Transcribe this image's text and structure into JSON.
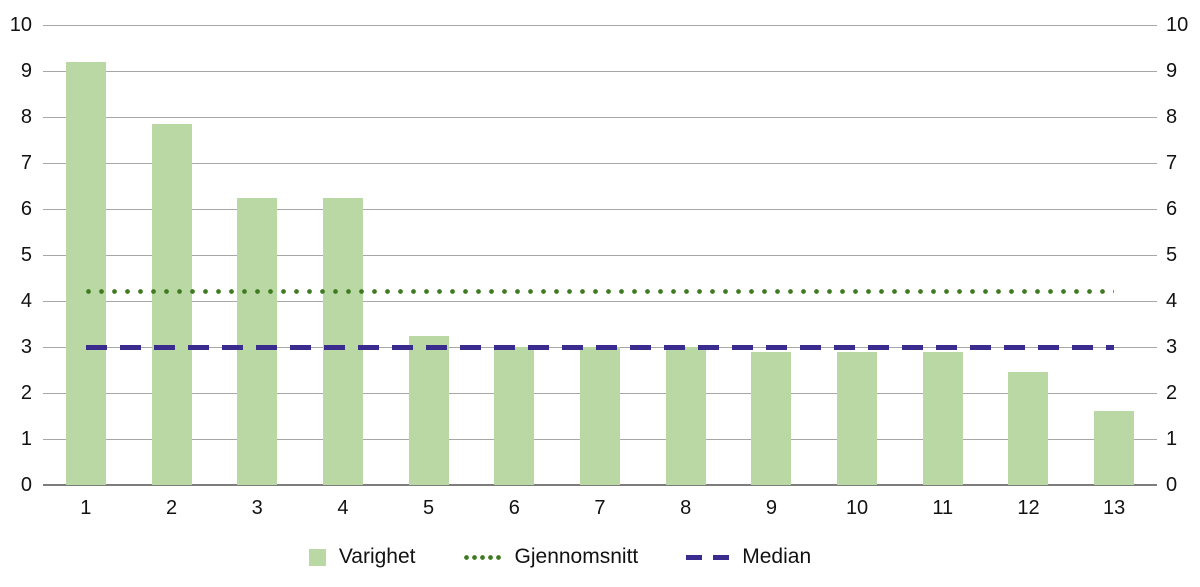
{
  "chart_data": {
    "type": "bar",
    "title": "",
    "xlabel": "",
    "ylabel": "",
    "categories": [
      "1",
      "2",
      "3",
      "4",
      "5",
      "6",
      "7",
      "8",
      "9",
      "10",
      "11",
      "12",
      "13"
    ],
    "series": [
      {
        "name": "Varighet",
        "kind": "bar",
        "color": "#b9d8a3",
        "values": [
          9.2,
          7.85,
          6.25,
          6.25,
          3.25,
          3.0,
          3.0,
          3.0,
          2.9,
          2.9,
          2.9,
          2.45,
          1.6
        ]
      },
      {
        "name": "Gjennomsnitt",
        "kind": "dotted-line",
        "color": "#3f7a20",
        "value": 4.2
      },
      {
        "name": "Median",
        "kind": "dashed-line",
        "color": "#3a2c8f",
        "value": 3.0
      }
    ],
    "ylim": [
      0,
      10
    ],
    "yticks": [
      0,
      1,
      2,
      3,
      4,
      5,
      6,
      7,
      8,
      9,
      10
    ],
    "grid": true,
    "legend_position": "bottom"
  },
  "legend": {
    "items": [
      {
        "label": "Varighet",
        "swatch": "square"
      },
      {
        "label": "Gjennomsnitt",
        "swatch": "dotted-line"
      },
      {
        "label": "Median",
        "swatch": "dashed-line"
      }
    ]
  },
  "colors": {
    "bar": "#b9d8a3",
    "average_line": "#3f7a20",
    "median_line": "#3a2c8f",
    "gridline": "#a7a7a7",
    "axis_line": "#7d7d7d",
    "text": "#121212",
    "background": "#ffffff"
  }
}
